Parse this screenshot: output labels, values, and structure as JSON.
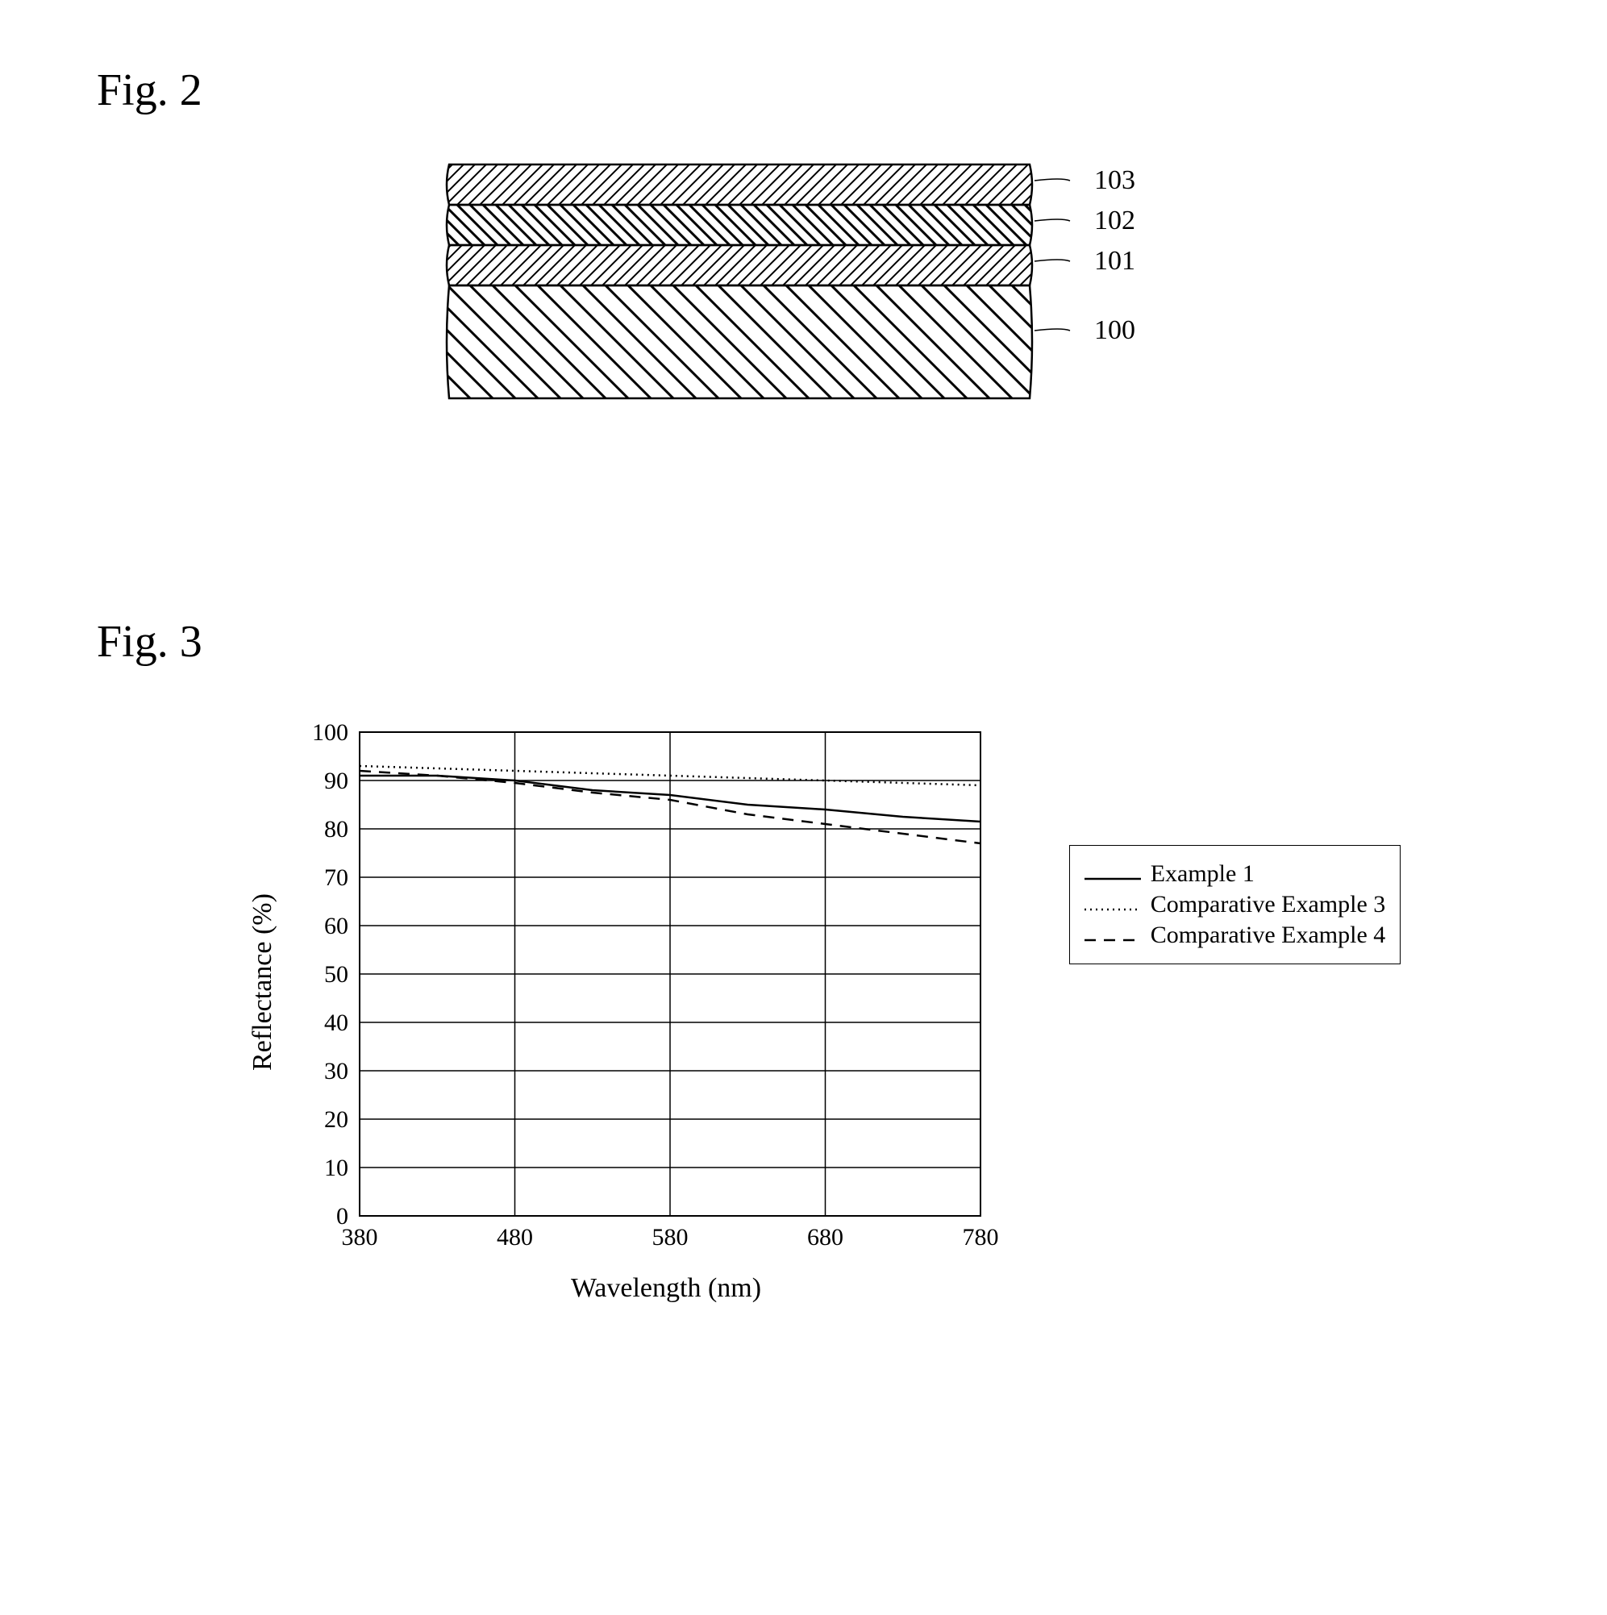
{
  "fig2": {
    "label": "Fig. 2",
    "layers": [
      {
        "id": "103",
        "hatch": "hatch-nw-thin"
      },
      {
        "id": "102",
        "hatch": "hatch-ne-thick"
      },
      {
        "id": "101",
        "hatch": "hatch-nw-thin"
      },
      {
        "id": "100",
        "hatch": "hatch-ne-wide"
      }
    ]
  },
  "fig3": {
    "label": "Fig. 3",
    "xlabel": "Wavelength (nm)",
    "ylabel": "Reflectance (%)",
    "xlim": [
      380,
      780
    ],
    "ylim": [
      0,
      100
    ],
    "xtick_step": 100,
    "xticks": [
      380,
      480,
      580,
      680,
      780
    ],
    "ytick_step": 10,
    "yticks": [
      0,
      10,
      20,
      30,
      40,
      50,
      60,
      70,
      80,
      90,
      100
    ],
    "grid_color": "#000000",
    "background_color": "#ffffff",
    "line_width": 2.5,
    "axis_fontsize": 34,
    "tick_fontsize": 30,
    "series": [
      {
        "name": "Example 1",
        "dash": "none",
        "color": "#000000",
        "points": [
          [
            380,
            91
          ],
          [
            430,
            91
          ],
          [
            480,
            90
          ],
          [
            530,
            88
          ],
          [
            580,
            87
          ],
          [
            630,
            85
          ],
          [
            680,
            84
          ],
          [
            730,
            82.5
          ],
          [
            780,
            81.5
          ]
        ]
      },
      {
        "name": "Comparative Example 3",
        "dash": "2,5",
        "color": "#000000",
        "points": [
          [
            380,
            93
          ],
          [
            430,
            92.5
          ],
          [
            480,
            92
          ],
          [
            530,
            91.5
          ],
          [
            580,
            91
          ],
          [
            630,
            90.5
          ],
          [
            680,
            90
          ],
          [
            730,
            89.5
          ],
          [
            780,
            89
          ]
        ]
      },
      {
        "name": "Comparative Example 4",
        "dash": "14,10",
        "color": "#000000",
        "points": [
          [
            380,
            92
          ],
          [
            430,
            91
          ],
          [
            480,
            89.5
          ],
          [
            530,
            87.5
          ],
          [
            580,
            86
          ],
          [
            630,
            83
          ],
          [
            680,
            81
          ],
          [
            730,
            79
          ],
          [
            780,
            77
          ]
        ]
      }
    ]
  }
}
